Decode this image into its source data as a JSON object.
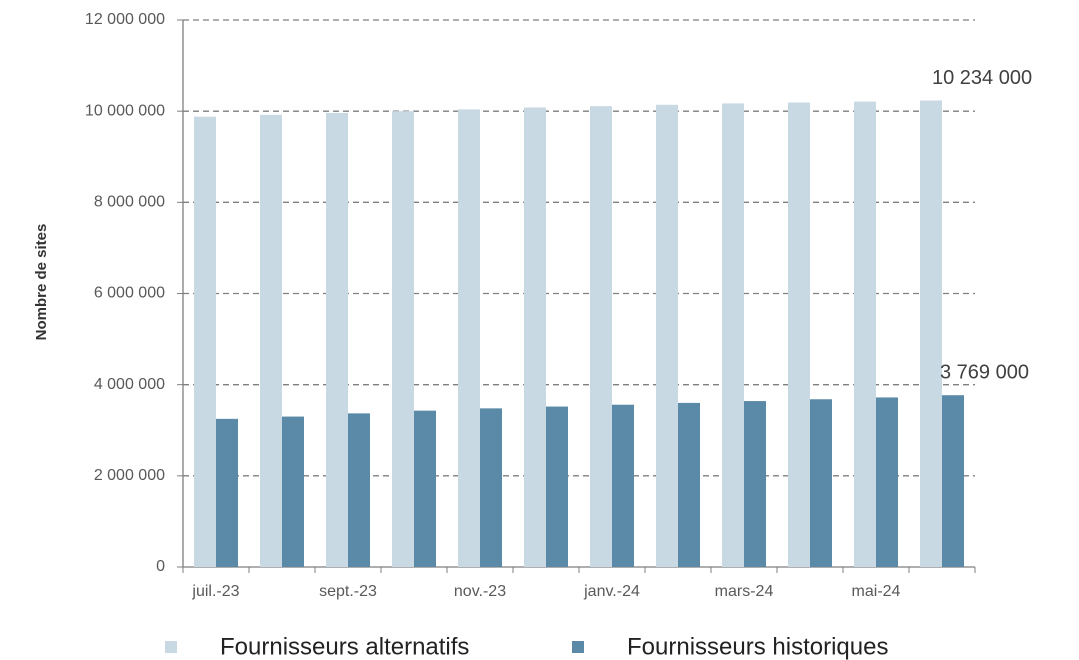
{
  "chart_data": {
    "type": "bar",
    "y_label": "Nombre de sites",
    "categories": [
      "juil.-23",
      null,
      "sept.-23",
      null,
      "nov.-23",
      null,
      "janv.-24",
      null,
      "mars-24",
      null,
      "mai-24",
      null
    ],
    "series": [
      {
        "name": "Fournisseurs alternatifs",
        "color": "#c9d9e3",
        "values": [
          9880000,
          9920000,
          9960000,
          10000000,
          10040000,
          10080000,
          10110000,
          10140000,
          10170000,
          10190000,
          10210000,
          10234000
        ],
        "value_labels": [
          null,
          null,
          null,
          null,
          null,
          null,
          null,
          null,
          null,
          null,
          null,
          "10 234 000"
        ]
      },
      {
        "name": "Fournisseurs historiques",
        "color": "#5b8aa8",
        "values": [
          3250000,
          3300000,
          3370000,
          3430000,
          3480000,
          3520000,
          3560000,
          3600000,
          3640000,
          3680000,
          3720000,
          3769000
        ],
        "value_labels": [
          null,
          null,
          null,
          null,
          null,
          null,
          null,
          null,
          null,
          null,
          null,
          "3 769 000"
        ]
      }
    ],
    "ylim": [
      0,
      12000000
    ],
    "yticks": [
      0,
      {
        "value": 2000000,
        "label": "2 000 000"
      },
      {
        "value": 4000000,
        "label": "4 000 000"
      },
      {
        "value": 6000000,
        "label": "6 000 000"
      },
      {
        "value": 8000000,
        "label": "8 000 000"
      },
      {
        "value": 10000000,
        "label": "10 000 000"
      },
      {
        "value": 12000000,
        "label": "12 000 000"
      }
    ],
    "grid": true,
    "legend": "bottom"
  }
}
